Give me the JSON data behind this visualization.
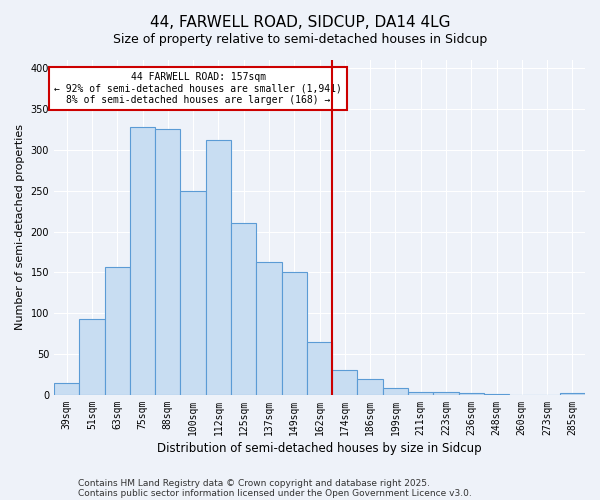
{
  "title": "44, FARWELL ROAD, SIDCUP, DA14 4LG",
  "subtitle": "Size of property relative to semi-detached houses in Sidcup",
  "xlabel": "Distribution of semi-detached houses by size in Sidcup",
  "ylabel": "Number of semi-detached properties",
  "categories": [
    "39sqm",
    "51sqm",
    "63sqm",
    "75sqm",
    "88sqm",
    "100sqm",
    "112sqm",
    "125sqm",
    "137sqm",
    "149sqm",
    "162sqm",
    "174sqm",
    "186sqm",
    "199sqm",
    "211sqm",
    "223sqm",
    "236sqm",
    "248sqm",
    "260sqm",
    "273sqm",
    "285sqm"
  ],
  "values": [
    15,
    93,
    157,
    328,
    325,
    250,
    312,
    211,
    163,
    150,
    65,
    30,
    20,
    9,
    4,
    3,
    2,
    1,
    0,
    0,
    2
  ],
  "bar_color": "#c8ddf2",
  "bar_edge_color": "#5b9bd5",
  "vline_x": 10.5,
  "vline_color": "#cc0000",
  "annotation_title": "44 FARWELL ROAD: 157sqm",
  "annotation_line1": "← 92% of semi-detached houses are smaller (1,941)",
  "annotation_line2": "8% of semi-detached houses are larger (168) →",
  "annotation_box_color": "#cc0000",
  "ylim": [
    0,
    410
  ],
  "yticks": [
    0,
    50,
    100,
    150,
    200,
    250,
    300,
    350,
    400
  ],
  "footer1": "Contains HM Land Registry data © Crown copyright and database right 2025.",
  "footer2": "Contains public sector information licensed under the Open Government Licence v3.0.",
  "bg_color": "#eef2f9",
  "plot_bg_color": "#eef2f9",
  "grid_color": "#ffffff",
  "title_fontsize": 11,
  "subtitle_fontsize": 9,
  "axis_label_fontsize": 8,
  "tick_fontsize": 7,
  "footer_fontsize": 6.5
}
